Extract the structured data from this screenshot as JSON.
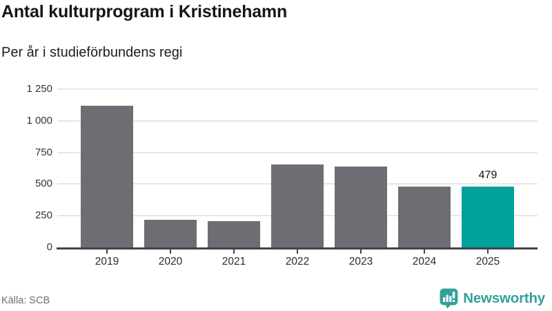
{
  "header": {
    "title": "Antal kulturprogram i Kristinehamn",
    "subtitle": "Per år i studieförbundens regi"
  },
  "chart_data": {
    "type": "bar",
    "title": "Antal kulturprogram i Kristinehamn",
    "subtitle": "Per år i studieförbundens regi",
    "categories": [
      "2019",
      "2020",
      "2021",
      "2022",
      "2023",
      "2024",
      "2025"
    ],
    "values": [
      1121,
      218,
      208,
      653,
      638,
      483,
      479
    ],
    "highlight_index": 6,
    "highlight_value_label": "479",
    "xlabel": "",
    "ylabel": "",
    "ylim": [
      0,
      1250
    ],
    "ytick_values": [
      0,
      250,
      500,
      750,
      1000,
      1250
    ],
    "ytick_labels": [
      "0",
      "250",
      "500",
      "750",
      "1 000",
      "1 250"
    ],
    "grid": true,
    "legend_position": "none",
    "bar_color": "#6e6d73",
    "highlight_color": "#00a19a"
  },
  "footer": {
    "source": "Källa: SCB",
    "brand": "Newsworthy"
  },
  "colors": {
    "accent_teal": "#00a19a",
    "brand_teal": "#35a099",
    "bar_gray": "#6e6d73",
    "grid": "#e6e6e6",
    "axis": "#434347",
    "title_text": "#161616",
    "muted_text": "#6e6e78"
  }
}
